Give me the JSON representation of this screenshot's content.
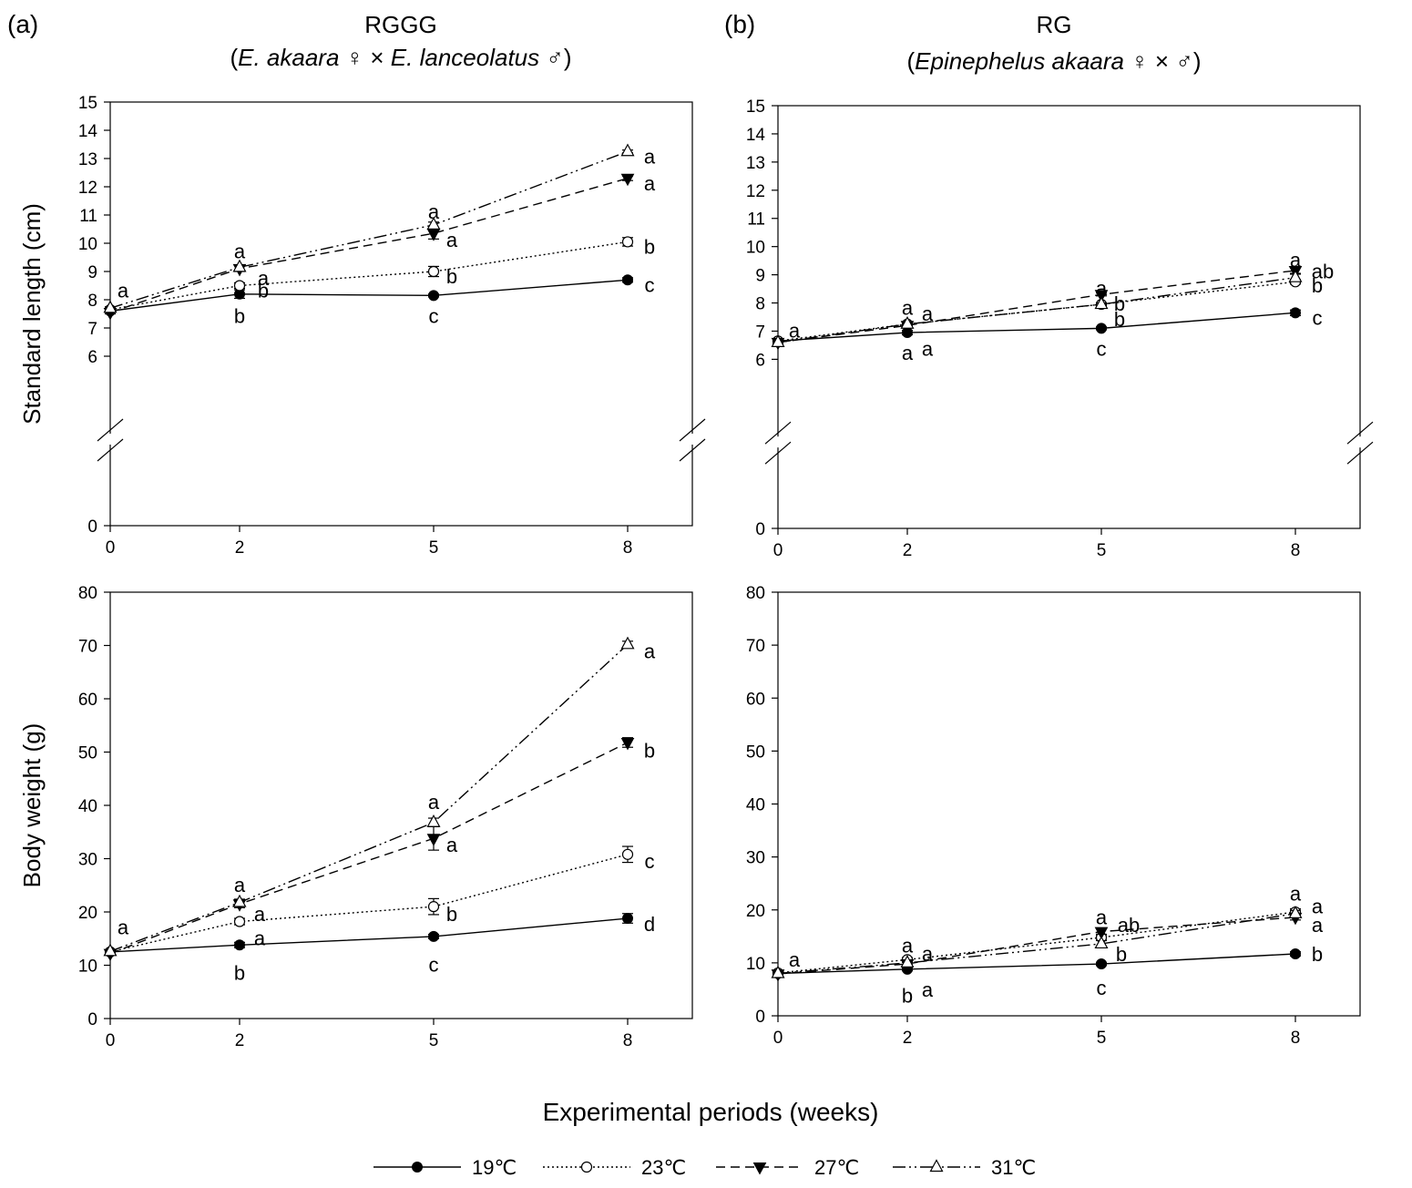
{
  "figure": {
    "xlabel": "Experimental periods (weeks)",
    "legend": [
      {
        "label": "19℃",
        "marker": "filled-circle",
        "dash": "solid"
      },
      {
        "label": "23℃",
        "marker": "open-circle",
        "dash": "dotted"
      },
      {
        "label": "27℃",
        "marker": "filled-triangle-down",
        "dash": "dashed"
      },
      {
        "label": "31℃",
        "marker": "open-triangle-up",
        "dash": "dash-dot-dot"
      }
    ],
    "panels": [
      {
        "tag": "(a)",
        "title": "RGGG",
        "subtitle_italic": "E. akaara",
        "subtitle_text": "♀ × ",
        "subtitle_italic2": "E. lanceolatus",
        "subtitle_tail": " ♂"
      },
      {
        "tag": "(b)",
        "title": "RG",
        "subtitle_italic": "Epinephelus akaara",
        "subtitle_text": " ♀ × ♂",
        "subtitle_italic2": "",
        "subtitle_tail": ""
      }
    ]
  },
  "chart_data": [
    {
      "type": "line",
      "panel": "(a) RGGG",
      "ylabel": "Standard length (cm)",
      "x": [
        0,
        2,
        5,
        8
      ],
      "xticks": [
        "0",
        "2",
        "5",
        "8"
      ],
      "xlim": [
        0,
        9
      ],
      "ylim": [
        0,
        15
      ],
      "axis_break": true,
      "yticks": [
        0,
        6,
        7,
        8,
        9,
        10,
        11,
        12,
        13,
        14,
        15
      ],
      "series": [
        {
          "name": "19℃",
          "values": [
            7.6,
            8.2,
            8.15,
            8.7
          ],
          "errors": [
            0.05,
            0.15,
            0.05,
            0.08
          ]
        },
        {
          "name": "23℃",
          "values": [
            7.65,
            8.5,
            9.0,
            10.05
          ],
          "errors": [
            0.05,
            0.1,
            0.18,
            0.15
          ]
        },
        {
          "name": "27℃",
          "values": [
            7.55,
            9.1,
            10.35,
            12.3
          ],
          "errors": [
            0.05,
            0.1,
            0.2,
            0.08
          ]
        },
        {
          "name": "31℃",
          "values": [
            7.7,
            9.15,
            10.65,
            13.25
          ],
          "errors": [
            0.05,
            0.08,
            0.1,
            0.05
          ]
        }
      ],
      "annotations": [
        {
          "x": 0,
          "y": 8.3,
          "text": "a",
          "dx": 14
        },
        {
          "x": 2,
          "y": 9.7,
          "text": "a",
          "dx": 0
        },
        {
          "x": 2,
          "y": 8.75,
          "text": "a",
          "dx": 26
        },
        {
          "x": 2,
          "y": 8.3,
          "text": "b",
          "dx": 26
        },
        {
          "x": 2,
          "y": 7.4,
          "text": "b",
          "dx": 0
        },
        {
          "x": 5,
          "y": 11.1,
          "text": "a",
          "dx": 0
        },
        {
          "x": 5,
          "y": 10.1,
          "text": "a",
          "dx": 20
        },
        {
          "x": 5,
          "y": 8.8,
          "text": "b",
          "dx": 20
        },
        {
          "x": 5,
          "y": 7.4,
          "text": "c",
          "dx": 0
        },
        {
          "x": 8,
          "y": 13.05,
          "text": "a",
          "dx": 24
        },
        {
          "x": 8,
          "y": 12.1,
          "text": "a",
          "dx": 24
        },
        {
          "x": 8,
          "y": 9.85,
          "text": "b",
          "dx": 24
        },
        {
          "x": 8,
          "y": 8.5,
          "text": "c",
          "dx": 24
        }
      ]
    },
    {
      "type": "line",
      "panel": "(b) RG",
      "ylabel": "",
      "x": [
        0,
        2,
        5,
        8
      ],
      "xticks": [
        "0",
        "2",
        "5",
        "8"
      ],
      "xlim": [
        0,
        9
      ],
      "ylim": [
        0,
        15
      ],
      "axis_break": true,
      "yticks": [
        0,
        6,
        7,
        8,
        9,
        10,
        11,
        12,
        13,
        14,
        15
      ],
      "series": [
        {
          "name": "19℃",
          "values": [
            6.65,
            6.95,
            7.1,
            7.65
          ],
          "errors": [
            0.05,
            0.08,
            0.05,
            0.1
          ]
        },
        {
          "name": "23℃",
          "values": [
            6.65,
            7.25,
            7.95,
            8.75
          ],
          "errors": [
            0.05,
            0.05,
            0.05,
            0.08
          ]
        },
        {
          "name": "27℃",
          "values": [
            6.6,
            7.2,
            8.3,
            9.15
          ],
          "errors": [
            0.05,
            0.05,
            0.05,
            0.1
          ]
        },
        {
          "name": "31℃",
          "values": [
            6.6,
            7.25,
            7.95,
            8.9
          ],
          "errors": [
            0.05,
            0.05,
            0.05,
            0.12
          ]
        }
      ],
      "annotations": [
        {
          "x": 0,
          "y": 7.0,
          "text": "a",
          "dx": 18
        },
        {
          "x": 2,
          "y": 7.8,
          "text": "a",
          "dx": 0
        },
        {
          "x": 2,
          "y": 7.6,
          "text": "a",
          "dx": 22
        },
        {
          "x": 2,
          "y": 6.35,
          "text": "a",
          "dx": 22
        },
        {
          "x": 2,
          "y": 6.2,
          "text": "a",
          "dx": 0
        },
        {
          "x": 5,
          "y": 8.5,
          "text": "a",
          "dx": 0
        },
        {
          "x": 5,
          "y": 7.95,
          "text": "b",
          "dx": 20
        },
        {
          "x": 5,
          "y": 7.4,
          "text": "b",
          "dx": 20
        },
        {
          "x": 5,
          "y": 6.35,
          "text": "c",
          "dx": 0
        },
        {
          "x": 8,
          "y": 9.5,
          "text": "a",
          "dx": 0
        },
        {
          "x": 8,
          "y": 9.1,
          "text": "ab",
          "dx": 30
        },
        {
          "x": 8,
          "y": 8.6,
          "text": "b",
          "dx": 24
        },
        {
          "x": 8,
          "y": 7.45,
          "text": "c",
          "dx": 24
        }
      ]
    },
    {
      "type": "line",
      "panel": "(a) RGGG",
      "ylabel": "Body weight (g)",
      "x": [
        0,
        2,
        5,
        8
      ],
      "xticks": [
        "0",
        "2",
        "5",
        "8"
      ],
      "xlim": [
        0,
        9
      ],
      "ylim": [
        0,
        80
      ],
      "axis_break": false,
      "yticks": [
        0,
        10,
        20,
        30,
        40,
        50,
        60,
        70,
        80
      ],
      "series": [
        {
          "name": "19℃",
          "values": [
            12.5,
            13.8,
            15.4,
            18.8
          ],
          "errors": [
            0.3,
            0.5,
            0.4,
            0.9
          ]
        },
        {
          "name": "23℃",
          "values": [
            12.5,
            18.2,
            21.0,
            30.8
          ],
          "errors": [
            0.3,
            0.6,
            1.5,
            1.5
          ]
        },
        {
          "name": "27℃",
          "values": [
            12.2,
            21.5,
            33.8,
            51.8
          ],
          "errors": [
            0.3,
            0.7,
            2.2,
            0.9
          ]
        },
        {
          "name": "31℃",
          "values": [
            12.6,
            21.8,
            36.8,
            70.2
          ],
          "errors": [
            0.3,
            0.6,
            0.8,
            0.6
          ]
        }
      ],
      "annotations": [
        {
          "x": 0,
          "y": 17.0,
          "text": "a",
          "dx": 14
        },
        {
          "x": 2,
          "y": 25.0,
          "text": "a",
          "dx": 0
        },
        {
          "x": 2,
          "y": 19.5,
          "text": "a",
          "dx": 22
        },
        {
          "x": 2,
          "y": 15.0,
          "text": "a",
          "dx": 22
        },
        {
          "x": 2,
          "y": 8.5,
          "text": "b",
          "dx": 0
        },
        {
          "x": 5,
          "y": 40.5,
          "text": "a",
          "dx": 0
        },
        {
          "x": 5,
          "y": 32.5,
          "text": "a",
          "dx": 20
        },
        {
          "x": 5,
          "y": 19.5,
          "text": "b",
          "dx": 20
        },
        {
          "x": 5,
          "y": 10.0,
          "text": "c",
          "dx": 0
        },
        {
          "x": 8,
          "y": 68.8,
          "text": "a",
          "dx": 24
        },
        {
          "x": 8,
          "y": 50.2,
          "text": "b",
          "dx": 24
        },
        {
          "x": 8,
          "y": 29.4,
          "text": "c",
          "dx": 24
        },
        {
          "x": 8,
          "y": 17.6,
          "text": "d",
          "dx": 24
        }
      ]
    },
    {
      "type": "line",
      "panel": "(b) RG",
      "ylabel": "",
      "x": [
        0,
        2,
        5,
        8
      ],
      "xticks": [
        "0",
        "2",
        "5",
        "8"
      ],
      "xlim": [
        0,
        9
      ],
      "ylim": [
        0,
        80
      ],
      "axis_break": false,
      "yticks": [
        0,
        10,
        20,
        30,
        40,
        50,
        60,
        70,
        80
      ],
      "series": [
        {
          "name": "19℃",
          "values": [
            8.0,
            8.8,
            9.8,
            11.7
          ],
          "errors": [
            0.2,
            0.3,
            0.3,
            0.4
          ]
        },
        {
          "name": "23℃",
          "values": [
            8.1,
            10.6,
            14.8,
            19.6
          ],
          "errors": [
            0.2,
            0.4,
            0.5,
            0.6
          ]
        },
        {
          "name": "27℃",
          "values": [
            7.9,
            9.8,
            15.9,
            18.6
          ],
          "errors": [
            0.2,
            0.3,
            0.5,
            0.5
          ]
        },
        {
          "name": "31℃",
          "values": [
            8.0,
            10.0,
            13.6,
            19.3
          ],
          "errors": [
            0.2,
            0.3,
            0.6,
            0.6
          ]
        }
      ],
      "annotations": [
        {
          "x": 0,
          "y": 10.5,
          "text": "a",
          "dx": 18
        },
        {
          "x": 2,
          "y": 13.2,
          "text": "a",
          "dx": 0
        },
        {
          "x": 2,
          "y": 11.6,
          "text": "a",
          "dx": 22
        },
        {
          "x": 2,
          "y": 4.8,
          "text": "a",
          "dx": 22
        },
        {
          "x": 2,
          "y": 3.7,
          "text": "b",
          "dx": 0
        },
        {
          "x": 5,
          "y": 18.5,
          "text": "a",
          "dx": 0
        },
        {
          "x": 5,
          "y": 17.0,
          "text": "ab",
          "dx": 30
        },
        {
          "x": 5,
          "y": 11.5,
          "text": "b",
          "dx": 22
        },
        {
          "x": 5,
          "y": 5.2,
          "text": "c",
          "dx": 0
        },
        {
          "x": 8,
          "y": 23.0,
          "text": "a",
          "dx": 0
        },
        {
          "x": 8,
          "y": 20.6,
          "text": "a",
          "dx": 24
        },
        {
          "x": 8,
          "y": 17.0,
          "text": "a",
          "dx": 24
        },
        {
          "x": 8,
          "y": 11.5,
          "text": "b",
          "dx": 24
        }
      ]
    }
  ]
}
